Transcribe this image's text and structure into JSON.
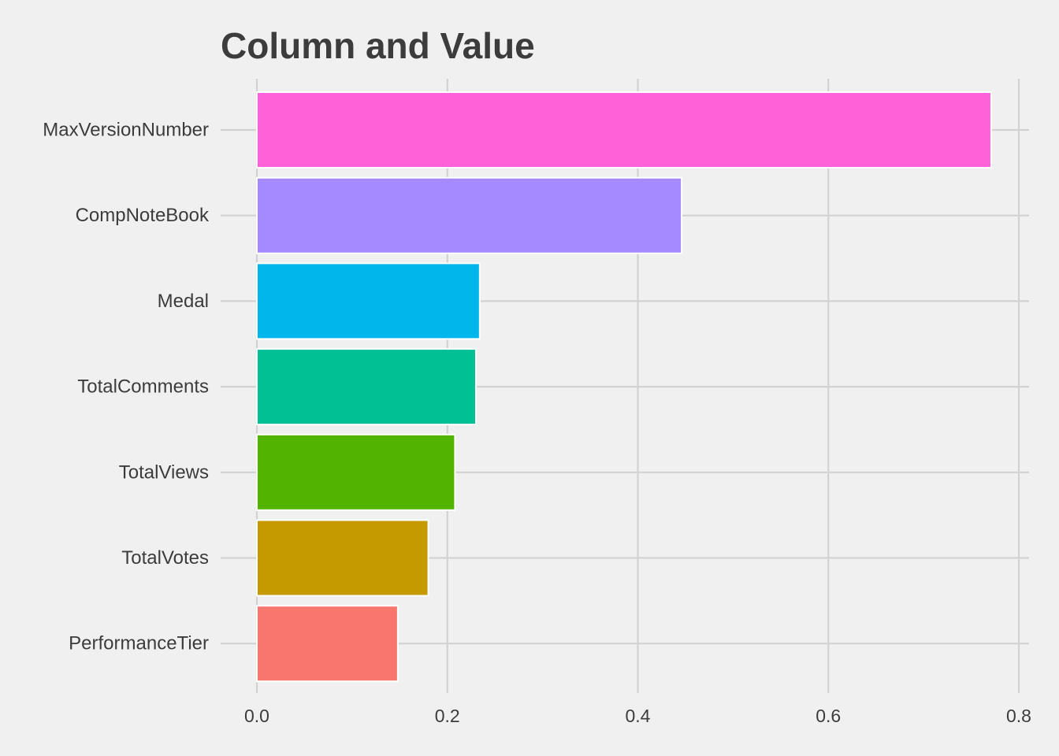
{
  "chart_data": {
    "type": "bar",
    "orientation": "horizontal",
    "title": "Column and Value",
    "xlabel": "",
    "ylabel": "",
    "categories": [
      "MaxVersionNumber",
      "CompNoteBook",
      "Medal",
      "TotalComments",
      "TotalViews",
      "TotalVotes",
      "PerformanceTier"
    ],
    "values": [
      0.771,
      0.446,
      0.234,
      0.23,
      0.208,
      0.18,
      0.148
    ],
    "colors": [
      "#ff61d8",
      "#a58aff",
      "#00b6eb",
      "#00c094",
      "#53b400",
      "#c49a00",
      "#f8766d"
    ],
    "xlim": [
      0,
      0.8
    ],
    "xticks": [
      "0.0",
      "0.2",
      "0.4",
      "0.6",
      "0.8"
    ],
    "xtick_values": [
      0,
      0.2,
      0.4,
      0.6,
      0.8
    ],
    "grid": true,
    "legend": "none"
  }
}
